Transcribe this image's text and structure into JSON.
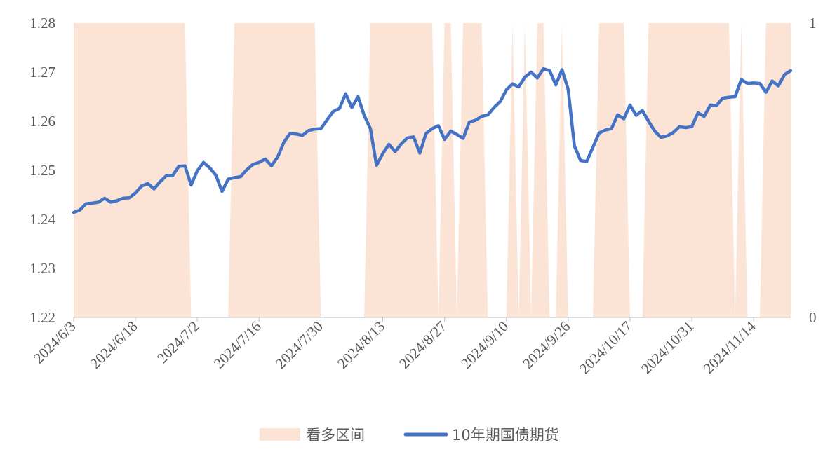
{
  "chart_data": {
    "type": "line",
    "title": "",
    "xlabel": "",
    "ylabel": "",
    "ylim": [
      1.22,
      1.28
    ],
    "y2lim": [
      0,
      1
    ],
    "yticks": [
      "1.22",
      "1.23",
      "1.24",
      "1.25",
      "1.26",
      "1.27",
      "1.28"
    ],
    "y2ticks": [
      "0",
      "1"
    ],
    "xticks": [
      "2024/6/3",
      "2024/6/18",
      "2024/7/2",
      "2024/7/16",
      "2024/7/30",
      "2024/8/13",
      "2024/8/27",
      "2024/9/10",
      "2024/9/26",
      "2024/10/17",
      "2024/10/31",
      "2024/11/14"
    ],
    "legend_position": "bottom",
    "grid": false,
    "colors": {
      "line": "#4472C4",
      "area": "#FBE4D5",
      "axis": "#BFBFBF",
      "text": "#595959"
    },
    "series": [
      {
        "name": "10年期国债期货",
        "kind": "line",
        "axis": "left",
        "values": [
          1.2414,
          1.2419,
          1.2432,
          1.2433,
          1.2435,
          1.2443,
          1.2435,
          1.2438,
          1.2443,
          1.2444,
          1.2454,
          1.2468,
          1.2473,
          1.2462,
          1.2477,
          1.2489,
          1.2489,
          1.2508,
          1.2509,
          1.247,
          1.2499,
          1.2516,
          1.2505,
          1.249,
          1.2457,
          1.2482,
          1.2485,
          1.2487,
          1.2501,
          1.2512,
          1.2516,
          1.2523,
          1.2509,
          1.2527,
          1.2557,
          1.2575,
          1.2574,
          1.2571,
          1.2581,
          1.2584,
          1.2585,
          1.2603,
          1.262,
          1.2626,
          1.2656,
          1.2628,
          1.265,
          1.2612,
          1.2585,
          1.251,
          1.2534,
          1.2553,
          1.2538,
          1.2554,
          1.2566,
          1.2568,
          1.2535,
          1.2575,
          1.2585,
          1.2591,
          1.2563,
          1.258,
          1.2573,
          1.2565,
          1.2598,
          1.2602,
          1.261,
          1.2613,
          1.2628,
          1.264,
          1.2664,
          1.2676,
          1.267,
          1.269,
          1.27,
          1.2688,
          1.2707,
          1.2703,
          1.2674,
          1.2705,
          1.2665,
          1.255,
          1.252,
          1.2518,
          1.2547,
          1.2576,
          1.2582,
          1.2585,
          1.2613,
          1.2605,
          1.2633,
          1.2612,
          1.2622,
          1.26,
          1.258,
          1.2567,
          1.257,
          1.2577,
          1.2589,
          1.2587,
          1.2589,
          1.2617,
          1.261,
          1.2633,
          1.2632,
          1.2647,
          1.2649,
          1.265,
          1.2685,
          1.2677,
          1.2678,
          1.2677,
          1.2659,
          1.2682,
          1.2672,
          1.2695,
          1.2703
        ]
      },
      {
        "name": "看多区间",
        "kind": "area",
        "axis": "right",
        "values": [
          1,
          1,
          1,
          1,
          1,
          1,
          1,
          1,
          1,
          1,
          1,
          1,
          1,
          1,
          1,
          1,
          1,
          1,
          1,
          0,
          0,
          0,
          0,
          0,
          0,
          0,
          1,
          1,
          1,
          1,
          1,
          1,
          1,
          1,
          1,
          1,
          1,
          1,
          1,
          1,
          0,
          0,
          0,
          0,
          0,
          0,
          0,
          0,
          1,
          1,
          1,
          1,
          1,
          1,
          1,
          1,
          1,
          1,
          1,
          0,
          1,
          1,
          0,
          1,
          1,
          1,
          1,
          0,
          0,
          0,
          0,
          1,
          0,
          1,
          0,
          1,
          1,
          0,
          0,
          1,
          0,
          0,
          0,
          0,
          0,
          1,
          1,
          1,
          1,
          1,
          0,
          0,
          0,
          1,
          1,
          1,
          1,
          1,
          1,
          1,
          1,
          1,
          1,
          1,
          1,
          1,
          1,
          0,
          1,
          0,
          0,
          0,
          1,
          1,
          1,
          1,
          1
        ]
      }
    ]
  }
}
